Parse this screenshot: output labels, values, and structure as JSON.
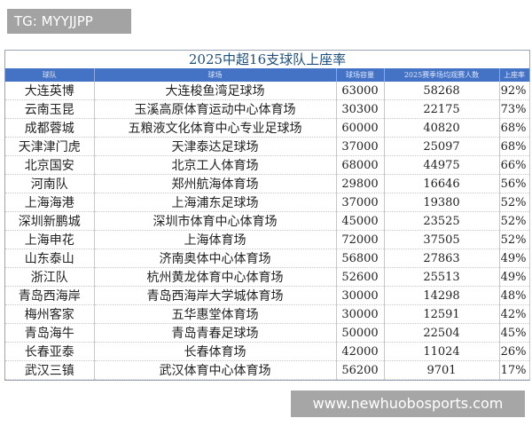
{
  "overlay_label": "TG: MYYJJPP",
  "site_label": "www.newhuobosports.com",
  "table": {
    "title": "2025中超16支球队上座率",
    "columns": [
      "球队",
      "球场",
      "球场容量",
      "2025赛季场均观赛人数",
      "上座率"
    ],
    "rows": [
      [
        "大连英博",
        "大连梭鱼湾足球场",
        "63000",
        "58268",
        "92%"
      ],
      [
        "云南玉昆",
        "玉溪高原体育运动中心体育场",
        "30300",
        "22175",
        "73%"
      ],
      [
        "成都蓉城",
        "五粮液文化体育中心专业足球场",
        "60000",
        "40820",
        "68%"
      ],
      [
        "天津津门虎",
        "天津泰达足球场",
        "37000",
        "25097",
        "68%"
      ],
      [
        "北京国安",
        "北京工人体育场",
        "68000",
        "44975",
        "66%"
      ],
      [
        "河南队",
        "郑州航海体育场",
        "29800",
        "16646",
        "56%"
      ],
      [
        "上海海港",
        "上海浦东足球场",
        "37000",
        "19380",
        "52%"
      ],
      [
        "深圳新鹏城",
        "深圳市体育中心体育场",
        "45000",
        "23525",
        "52%"
      ],
      [
        "上海申花",
        "上海体育场",
        "72000",
        "37505",
        "52%"
      ],
      [
        "山东泰山",
        "济南奥体中心体育场",
        "56800",
        "27863",
        "49%"
      ],
      [
        "浙江队",
        "杭州黄龙体育中心体育场",
        "52600",
        "25513",
        "49%"
      ],
      [
        "青岛西海岸",
        "青岛西海岸大学城体育场",
        "30000",
        "14298",
        "48%"
      ],
      [
        "梅州客家",
        "五华惠堂体育场",
        "30000",
        "12591",
        "42%"
      ],
      [
        "青岛海牛",
        "青岛青春足球场",
        "50000",
        "22504",
        "45%"
      ],
      [
        "长春亚泰",
        "长春体育场",
        "42000",
        "11024",
        "26%"
      ],
      [
        "武汉三镇",
        "武汉体育中心体育场",
        "56200",
        "9701",
        "17%"
      ]
    ]
  },
  "colors": {
    "header_bg": "#4472c4",
    "title_text": "#1f4e79"
  }
}
